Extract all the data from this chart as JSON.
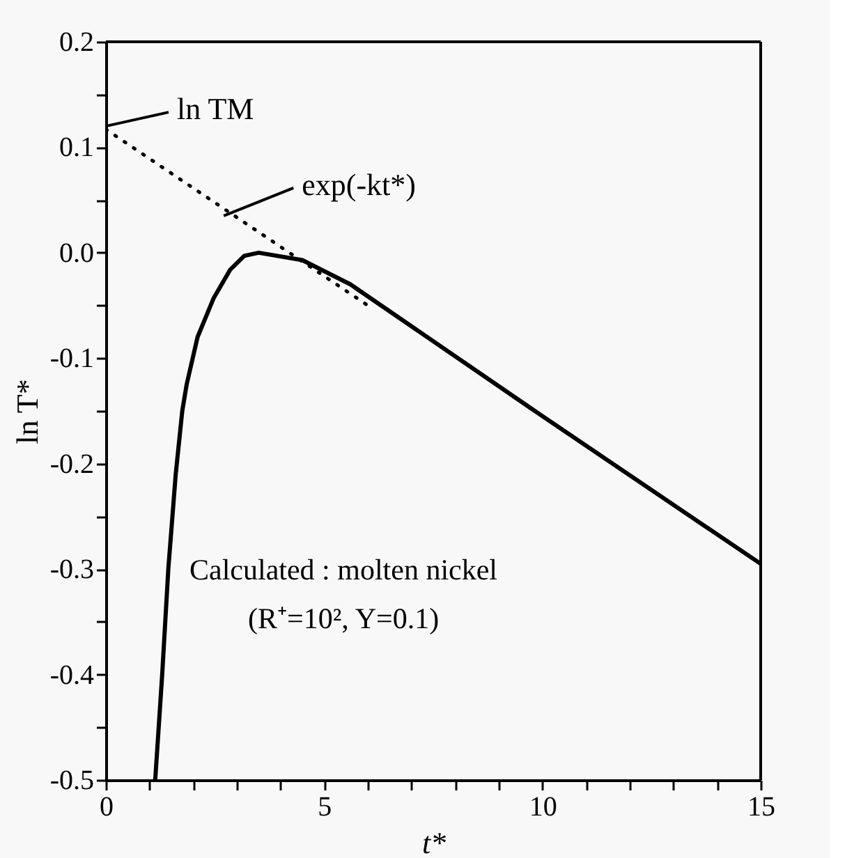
{
  "chart_data": {
    "type": "line",
    "xlabel": "t*",
    "ylabel": "ln T*",
    "xlim": [
      0,
      15
    ],
    "ylim": [
      -0.5,
      0.2
    ],
    "xticks": [
      0,
      {
        "value": 1,
        "label": null
      },
      {
        "value": 2,
        "label": null
      },
      {
        "value": 3,
        "label": null
      },
      {
        "value": 4,
        "label": null
      },
      5,
      {
        "value": 6,
        "label": null
      },
      {
        "value": 7,
        "label": null
      },
      {
        "value": 8,
        "label": null
      },
      {
        "value": 9,
        "label": null
      },
      10,
      {
        "value": 11,
        "label": null
      },
      {
        "value": 12,
        "label": null
      },
      {
        "value": 13,
        "label": null
      },
      {
        "value": 14,
        "label": null
      },
      15
    ],
    "yticks": [
      -0.5,
      {
        "value": -0.45,
        "label": null
      },
      -0.4,
      {
        "value": -0.35,
        "label": null
      },
      -0.3,
      {
        "value": -0.25,
        "label": null
      },
      -0.2,
      {
        "value": -0.15,
        "label": null
      },
      -0.1,
      {
        "value": -0.05,
        "label": null
      },
      {
        "value": 0,
        "label": "0.0"
      },
      {
        "value": 0.05,
        "label": null
      },
      0.1,
      {
        "value": 0.15,
        "label": null
      },
      0.2
    ],
    "grid": false,
    "series": [
      {
        "color": "#000000",
        "line_style": "solid",
        "x": [
          1.13,
          1.29,
          1.43,
          1.6,
          1.75,
          1.85,
          2.1,
          2.47,
          2.85,
          3.17,
          3.5,
          4.5,
          5.6,
          10,
          15
        ],
        "values": [
          -0.5,
          -0.4,
          -0.3,
          -0.21,
          -0.15,
          -0.125,
          -0.08,
          -0.043,
          -0.016,
          -0.003,
          0.0,
          -0.007,
          -0.03,
          -0.155,
          -0.295
        ]
      },
      {
        "color": "#000000",
        "line_style": "dotted",
        "x": [
          0,
          6
        ],
        "values": [
          0.117,
          -0.05
        ]
      }
    ],
    "annotations": [
      {
        "text": "ln TM",
        "x": 0,
        "y": 0.12
      },
      {
        "text": "exp(-kt*)",
        "x": 2.7,
        "y": 0.035
      },
      "Calculated : molten nickel",
      "(R⁺=10², Y=0.1)"
    ]
  }
}
